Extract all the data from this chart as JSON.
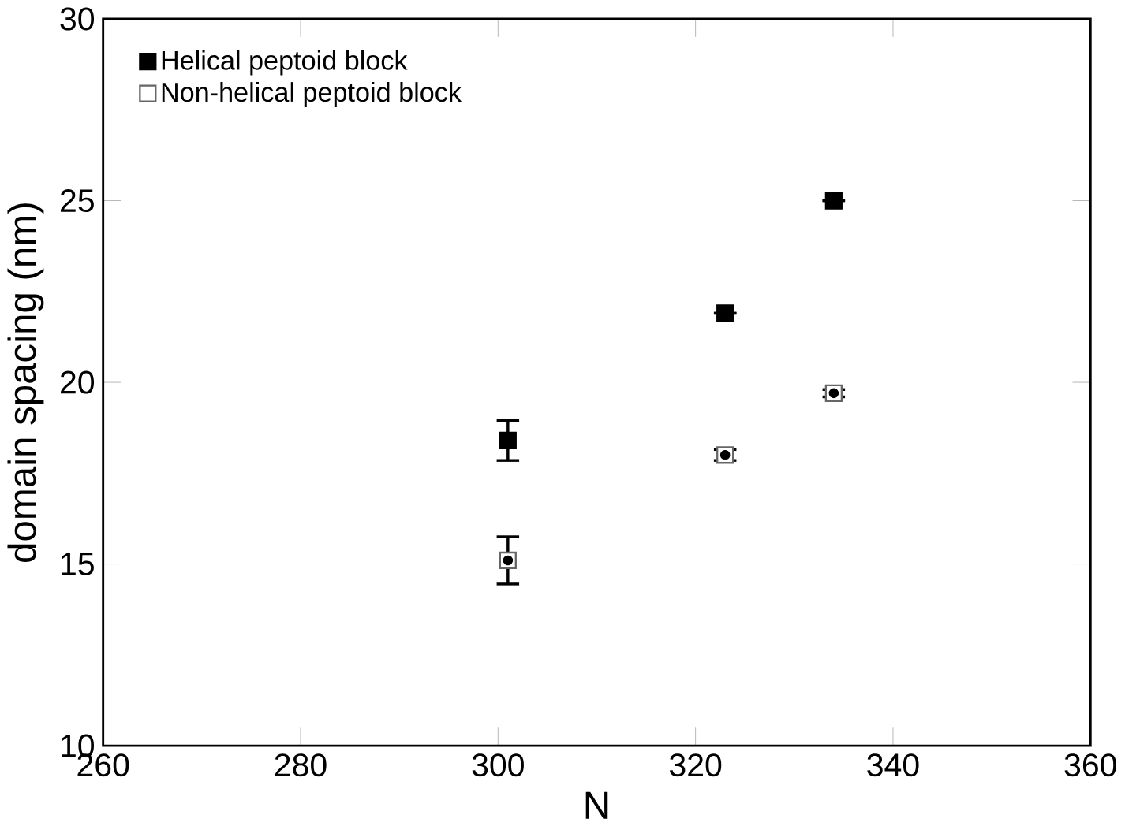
{
  "chart_data": {
    "type": "scatter",
    "xlabel": "N",
    "ylabel": "domain spacing (nm)",
    "xlim": [
      260,
      360
    ],
    "xticks": [
      260,
      280,
      300,
      320,
      340,
      360
    ],
    "ylim": [
      10,
      30
    ],
    "yticks": [
      10,
      15,
      20,
      25,
      30
    ],
    "x": [
      301,
      323,
      334
    ],
    "marker": "square",
    "legend": "top left",
    "grid": false,
    "series": [
      {
        "name": "Helical peptoid block",
        "color": "#000000",
        "values": [
          18.4,
          21.9,
          25.0
        ],
        "errors": [
          0.55,
          null,
          null
        ]
      },
      {
        "name": "Non-helical peptoid block",
        "color": "#ffffff",
        "values": [
          15.1,
          18.0,
          19.7
        ],
        "errors": [
          0.65,
          0.15,
          0.1
        ]
      }
    ]
  }
}
